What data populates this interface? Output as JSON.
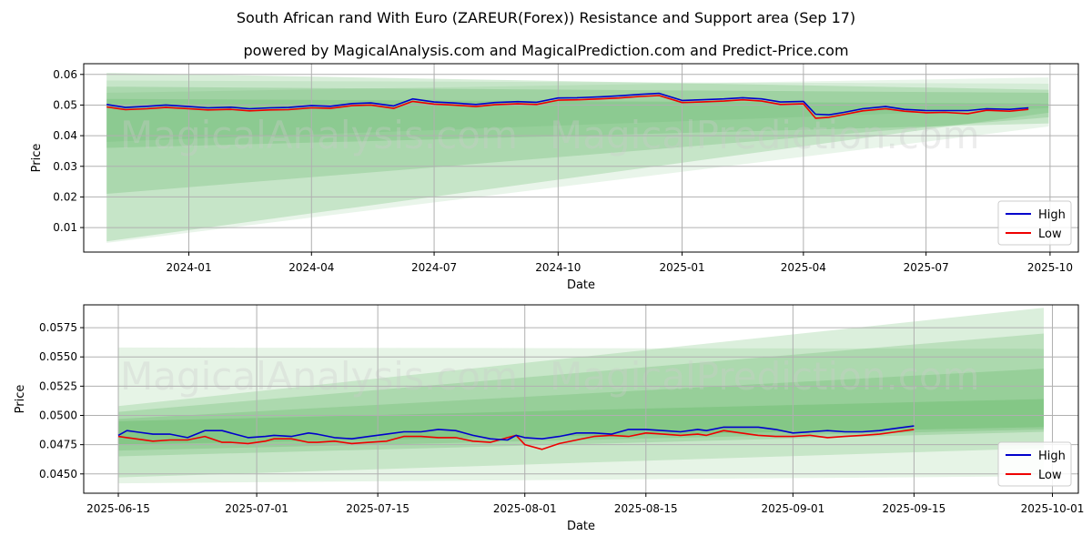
{
  "title": "South African rand With Euro (ZAREUR(Forex)) Resistance and Support area (Sep 17)",
  "subtitle": "powered by MagicalAnalysis.com and MagicalPrediction.com and Predict-Price.com",
  "watermarks": [
    "MagicalAnalysis.com",
    "MagicalPrediction.com"
  ],
  "colors": {
    "high": "#0000cc",
    "low": "#ee0000",
    "band": "#4caf50",
    "grid": "#b0b0b0"
  },
  "chart_data": [
    {
      "type": "line",
      "xlabel": "Date",
      "ylabel": "Price",
      "x_ticks": [
        "2024-01",
        "2024-04",
        "2024-07",
        "2024-10",
        "2025-01",
        "2025-04",
        "2025-07",
        "2025-10"
      ],
      "y_ticks": [
        "0.01",
        "0.02",
        "0.03",
        "0.04",
        "0.05",
        "0.06"
      ],
      "xlim": [
        "2023-10-15",
        "2025-10-22"
      ],
      "ylim": [
        0.002,
        0.0635
      ],
      "grid": true,
      "legend": {
        "position": "lower-right",
        "entries": [
          "High",
          "Low"
        ]
      },
      "forecast_bands": [
        {
          "start": "2023-11-01",
          "end": "2025-09-30",
          "start_range": [
            0.036,
            0.0605
          ],
          "end_range": [
            0.044,
            0.055
          ]
        },
        {
          "start": "2023-11-01",
          "end": "2025-09-30",
          "start_range": [
            0.021,
            0.056
          ],
          "end_range": [
            0.046,
            0.054
          ]
        },
        {
          "start": "2023-11-01",
          "end": "2025-09-30",
          "start_range": [
            0.0055,
            0.052
          ],
          "end_range": [
            0.0475,
            0.0505
          ]
        },
        {
          "start": "2023-11-01",
          "end": "2025-09-30",
          "start_range": [
            0.005,
            0.058
          ],
          "end_range": [
            0.043,
            0.057
          ]
        },
        {
          "start": "2023-11-01",
          "end": "2025-09-30",
          "start_range": [
            0.038,
            0.054
          ],
          "end_range": [
            0.049,
            0.059
          ]
        }
      ],
      "series": [
        {
          "name": "High",
          "x": [
            "2023-11-01",
            "2023-11-15",
            "2023-12-01",
            "2023-12-15",
            "2024-01-01",
            "2024-01-15",
            "2024-02-01",
            "2024-02-15",
            "2024-03-01",
            "2024-03-15",
            "2024-04-01",
            "2024-04-15",
            "2024-05-01",
            "2024-05-15",
            "2024-06-01",
            "2024-06-15",
            "2024-07-01",
            "2024-07-15",
            "2024-08-01",
            "2024-08-15",
            "2024-09-01",
            "2024-09-15",
            "2024-10-01",
            "2024-10-15",
            "2024-11-01",
            "2024-11-15",
            "2024-12-01",
            "2024-12-15",
            "2025-01-01",
            "2025-01-15",
            "2025-02-01",
            "2025-02-15",
            "2025-03-01",
            "2025-03-15",
            "2025-04-01",
            "2025-04-10",
            "2025-04-20",
            "2025-05-01",
            "2025-05-15",
            "2025-06-01",
            "2025-06-15",
            "2025-07-01",
            "2025-07-15",
            "2025-08-01",
            "2025-08-15",
            "2025-09-01",
            "2025-09-15"
          ],
          "values": [
            0.0502,
            0.0492,
            0.0496,
            0.05,
            0.0495,
            0.0491,
            0.0493,
            0.0488,
            0.0491,
            0.0492,
            0.0498,
            0.0496,
            0.0505,
            0.0507,
            0.0497,
            0.052,
            0.051,
            0.0507,
            0.0502,
            0.0508,
            0.0511,
            0.0509,
            0.0523,
            0.0524,
            0.0527,
            0.053,
            0.0535,
            0.0538,
            0.0515,
            0.0517,
            0.052,
            0.0524,
            0.052,
            0.051,
            0.0512,
            0.047,
            0.0468,
            0.0476,
            0.0488,
            0.0495,
            0.0486,
            0.0482,
            0.0482,
            0.0482,
            0.0488,
            0.0486,
            0.0491
          ]
        },
        {
          "name": "Low",
          "x": [
            "2023-11-01",
            "2023-11-15",
            "2023-12-01",
            "2023-12-15",
            "2024-01-01",
            "2024-01-15",
            "2024-02-01",
            "2024-02-15",
            "2024-03-01",
            "2024-03-15",
            "2024-04-01",
            "2024-04-15",
            "2024-05-01",
            "2024-05-15",
            "2024-06-01",
            "2024-06-15",
            "2024-07-01",
            "2024-07-15",
            "2024-08-01",
            "2024-08-15",
            "2024-09-01",
            "2024-09-15",
            "2024-10-01",
            "2024-10-15",
            "2024-11-01",
            "2024-11-15",
            "2024-12-01",
            "2024-12-15",
            "2025-01-01",
            "2025-01-15",
            "2025-02-01",
            "2025-02-15",
            "2025-03-01",
            "2025-03-15",
            "2025-04-01",
            "2025-04-10",
            "2025-04-20",
            "2025-05-01",
            "2025-05-15",
            "2025-06-01",
            "2025-06-15",
            "2025-07-01",
            "2025-07-15",
            "2025-08-01",
            "2025-08-15",
            "2025-09-01",
            "2025-09-15"
          ],
          "values": [
            0.0494,
            0.0485,
            0.0488,
            0.0492,
            0.0488,
            0.0484,
            0.0486,
            0.0481,
            0.0484,
            0.0485,
            0.0491,
            0.0489,
            0.0498,
            0.05,
            0.0489,
            0.0512,
            0.0503,
            0.05,
            0.0495,
            0.0501,
            0.0504,
            0.0502,
            0.0516,
            0.0517,
            0.052,
            0.0523,
            0.0528,
            0.0531,
            0.0508,
            0.051,
            0.0513,
            0.0517,
            0.0513,
            0.0502,
            0.0504,
            0.0457,
            0.046,
            0.0469,
            0.0481,
            0.0488,
            0.048,
            0.0475,
            0.0476,
            0.0472,
            0.0483,
            0.048,
            0.0486
          ]
        }
      ]
    },
    {
      "type": "line",
      "xlabel": "Date",
      "ylabel": "Price",
      "x_ticks": [
        "2025-06-15",
        "2025-07-01",
        "2025-07-15",
        "2025-08-01",
        "2025-08-15",
        "2025-09-01",
        "2025-09-15",
        "2025-10-01"
      ],
      "y_ticks": [
        "0.0450",
        "0.0475",
        "0.0500",
        "0.0525",
        "0.0550",
        "0.0575"
      ],
      "xlim": [
        "2025-06-11",
        "2025-10-04"
      ],
      "ylim": [
        0.04335,
        0.05945
      ],
      "grid": true,
      "legend": {
        "position": "lower-right",
        "entries": [
          "High",
          "Low"
        ]
      },
      "forecast_bands": [
        {
          "start": "2025-06-15",
          "end": "2025-09-30",
          "start_range": [
            0.0442,
            0.0558
          ],
          "end_range": [
            0.0448,
            0.0557
          ]
        },
        {
          "start": "2025-06-15",
          "end": "2025-09-30",
          "start_range": [
            0.0447,
            0.0508
          ],
          "end_range": [
            0.0472,
            0.0592
          ]
        },
        {
          "start": "2025-06-15",
          "end": "2025-09-30",
          "start_range": [
            0.0465,
            0.0503
          ],
          "end_range": [
            0.0486,
            0.057
          ]
        },
        {
          "start": "2025-06-15",
          "end": "2025-09-30",
          "start_range": [
            0.047,
            0.0497
          ],
          "end_range": [
            0.0488,
            0.054
          ]
        },
        {
          "start": "2025-06-15",
          "end": "2025-09-30",
          "start_range": [
            0.0475,
            0.0495
          ],
          "end_range": [
            0.049,
            0.0514
          ]
        }
      ],
      "series": [
        {
          "name": "High",
          "x": [
            "2025-06-15",
            "2025-06-16",
            "2025-06-17",
            "2025-06-19",
            "2025-06-21",
            "2025-06-23",
            "2025-06-25",
            "2025-06-27",
            "2025-06-28",
            "2025-06-30",
            "2025-07-02",
            "2025-07-03",
            "2025-07-05",
            "2025-07-07",
            "2025-07-08",
            "2025-07-10",
            "2025-07-12",
            "2025-07-14",
            "2025-07-16",
            "2025-07-18",
            "2025-07-20",
            "2025-07-22",
            "2025-07-24",
            "2025-07-26",
            "2025-07-28",
            "2025-07-30",
            "2025-07-31",
            "2025-08-01",
            "2025-08-03",
            "2025-08-05",
            "2025-08-07",
            "2025-08-09",
            "2025-08-11",
            "2025-08-13",
            "2025-08-15",
            "2025-08-17",
            "2025-08-19",
            "2025-08-21",
            "2025-08-22",
            "2025-08-24",
            "2025-08-26",
            "2025-08-28",
            "2025-08-30",
            "2025-09-01",
            "2025-09-03",
            "2025-09-05",
            "2025-09-07",
            "2025-09-09",
            "2025-09-11",
            "2025-09-13",
            "2025-09-15"
          ],
          "values": [
            0.0483,
            0.0487,
            0.0486,
            0.0484,
            0.0484,
            0.0481,
            0.0487,
            0.0487,
            0.0485,
            0.0481,
            0.0482,
            0.0483,
            0.0482,
            0.0485,
            0.0484,
            0.0481,
            0.048,
            0.0482,
            0.0484,
            0.0486,
            0.0486,
            0.0488,
            0.0487,
            0.0483,
            0.048,
            0.0479,
            0.0483,
            0.0481,
            0.048,
            0.0482,
            0.0485,
            0.0485,
            0.0484,
            0.0488,
            0.0488,
            0.0487,
            0.0486,
            0.0488,
            0.0487,
            0.049,
            0.049,
            0.049,
            0.0488,
            0.0485,
            0.0486,
            0.0487,
            0.0486,
            0.0486,
            0.0487,
            0.0489,
            0.0491
          ]
        },
        {
          "name": "Low",
          "x": [
            "2025-06-15",
            "2025-06-16",
            "2025-06-17",
            "2025-06-19",
            "2025-06-21",
            "2025-06-23",
            "2025-06-25",
            "2025-06-27",
            "2025-06-28",
            "2025-06-30",
            "2025-07-02",
            "2025-07-03",
            "2025-07-05",
            "2025-07-07",
            "2025-07-08",
            "2025-07-10",
            "2025-07-12",
            "2025-07-14",
            "2025-07-16",
            "2025-07-18",
            "2025-07-20",
            "2025-07-22",
            "2025-07-24",
            "2025-07-26",
            "2025-07-28",
            "2025-07-30",
            "2025-07-31",
            "2025-08-01",
            "2025-08-03",
            "2025-08-05",
            "2025-08-07",
            "2025-08-09",
            "2025-08-11",
            "2025-08-13",
            "2025-08-15",
            "2025-08-17",
            "2025-08-19",
            "2025-08-21",
            "2025-08-22",
            "2025-08-24",
            "2025-08-26",
            "2025-08-28",
            "2025-08-30",
            "2025-09-01",
            "2025-09-03",
            "2025-09-05",
            "2025-09-07",
            "2025-09-09",
            "2025-09-11",
            "2025-09-13",
            "2025-09-15"
          ],
          "values": [
            0.0482,
            0.0481,
            0.048,
            0.0478,
            0.0479,
            0.0479,
            0.0482,
            0.0477,
            0.0477,
            0.0476,
            0.0478,
            0.048,
            0.048,
            0.0477,
            0.0477,
            0.0478,
            0.0476,
            0.0477,
            0.0478,
            0.0482,
            0.0482,
            0.0481,
            0.0481,
            0.0478,
            0.0477,
            0.0481,
            0.0483,
            0.0475,
            0.0471,
            0.0476,
            0.0479,
            0.0482,
            0.0483,
            0.0482,
            0.0485,
            0.0484,
            0.0483,
            0.0484,
            0.0483,
            0.0487,
            0.0485,
            0.0483,
            0.0482,
            0.0482,
            0.0483,
            0.0481,
            0.0482,
            0.0483,
            0.0484,
            0.0486,
            0.0488
          ]
        }
      ]
    }
  ]
}
